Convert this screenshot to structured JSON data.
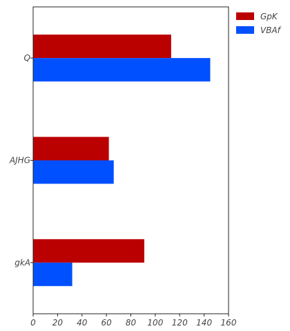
{
  "chart_data": {
    "type": "bar",
    "orientation": "horizontal",
    "categories": [
      "gkA",
      "AJHG",
      "Q"
    ],
    "series": [
      {
        "name": "GpK",
        "color": "#bb0000",
        "values": [
          91,
          62,
          113
        ]
      },
      {
        "name": "VBAf",
        "color": "#0050ff",
        "values": [
          32,
          66,
          145
        ]
      }
    ],
    "x_ticks": [
      "0",
      "20",
      "40",
      "60",
      "80",
      "100",
      "120",
      "140",
      "160"
    ],
    "xlim": [
      0,
      160
    ],
    "title": "",
    "xlabel": "",
    "ylabel": "",
    "grid": false,
    "legend_position": "outside-top-right"
  }
}
